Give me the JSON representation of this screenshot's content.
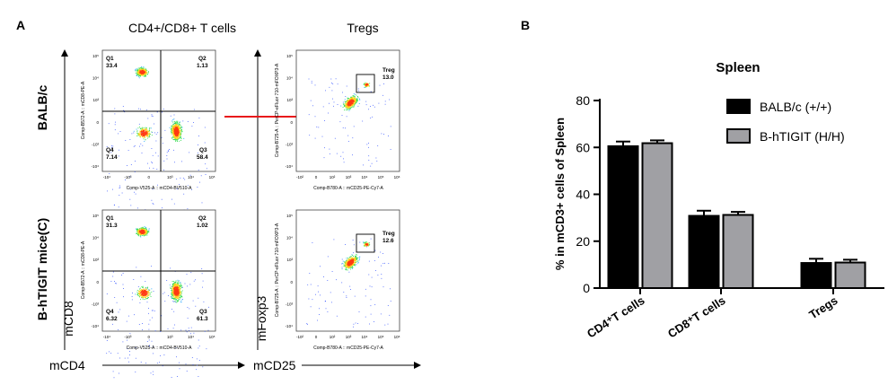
{
  "panel_a": {
    "label": "A",
    "col1_title": "CD4+/CD8+ T cells",
    "col2_title": "Tregs",
    "row1_label": "BALB/c",
    "row2_label": "B-hTIGIT mice(C)",
    "y_axis_cd8": "mCD8",
    "y_axis_foxp3": "mFoxp3",
    "x_axis_cd4": "mCD4",
    "x_axis_cd25": "mCD25",
    "plot_quad_ylabel": "Comp-B572-A :: mCD8-PE-A",
    "plot_quad_xlabel": "Comp-V525-A :: mCD4-BV510-A",
    "plot_treg_ylabel": "Comp-B725-A :: PerCP-eFluor 710-mFOXP3-A",
    "plot_treg_xlabel": "Comp-B780-A :: mCD25-PE-Cy7-A",
    "quad_balbc": {
      "q1": "Q1",
      "q1v": "33.4",
      "q2": "Q2",
      "q2v": "1.13",
      "q3": "Q3",
      "q3v": "58.4",
      "q4": "Q4",
      "q4v": "7.14"
    },
    "quad_htigit": {
      "q1": "Q1",
      "q1v": "31.3",
      "q2": "Q2",
      "q2v": "1.02",
      "q3": "Q3",
      "q3v": "61.3",
      "q4": "Q4",
      "q4v": "6.32"
    },
    "treg_balbc": {
      "gate": "Treg",
      "value": "13.0"
    },
    "treg_htigit": {
      "gate": "Treg",
      "value": "12.6"
    },
    "tick_y": [
      "10⁵",
      "10⁴",
      "10³",
      "0",
      "-10³",
      "-10⁴"
    ],
    "tick_x": [
      "-10⁴",
      "-10³",
      "0",
      "10³",
      "10⁴",
      "10⁵"
    ],
    "tick_x_treg": [
      "-10²",
      "0",
      "10²",
      "10³",
      "10⁴",
      "10⁵",
      "10⁶"
    ]
  },
  "chart_data": {
    "type": "bar",
    "panel_label": "B",
    "title": "Spleen",
    "ylabel": "% in mCD3+ cells of Spleen",
    "xlabel": "",
    "ylim": [
      0,
      80
    ],
    "yticks": [
      0,
      20,
      40,
      60,
      80
    ],
    "categories": [
      "CD4⁺T cells",
      "CD8⁺T cells",
      "Tregs"
    ],
    "series": [
      {
        "name": "BALB/c (+/+)",
        "values": [
          60.5,
          30.8,
          10.7
        ],
        "errors": [
          2.0,
          2.2,
          1.8
        ],
        "color": "#000000"
      },
      {
        "name": "B-hTIGIT (H/H)",
        "values": [
          61.8,
          31.2,
          10.9
        ],
        "errors": [
          1.2,
          1.3,
          1.2
        ],
        "color": "#a0a0a4"
      }
    ],
    "legend_position": "top-right",
    "grid": false
  }
}
